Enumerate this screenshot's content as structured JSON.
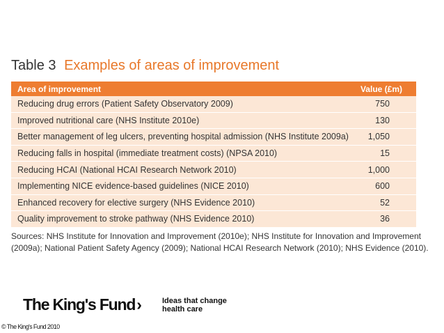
{
  "table": {
    "number": "Table 3",
    "caption": "Examples of areas of improvement",
    "headers": [
      "Area of improvement",
      "Value (£m)"
    ],
    "rows": [
      {
        "area": "Reducing drug errors (Patient Safety Observatory 2009)",
        "value": "750"
      },
      {
        "area": "Improved nutritional care (NHS Institute 2010e)",
        "value": "130"
      },
      {
        "area": "Better management of leg ulcers, preventing hospital admission (NHS Institute 2009a)",
        "value": "1,050"
      },
      {
        "area": "Reducing falls in hospital (immediate treatment costs) (NPSA 2010)",
        "value": "15"
      },
      {
        "area": "Reducing HCAI (National HCAI Research Network 2010)",
        "value": "1,000"
      },
      {
        "area": "Implementing NICE evidence-based guidelines (NICE 2010)",
        "value": "600"
      },
      {
        "area": "Enhanced recovery for elective surgery (NHS Evidence 2010)",
        "value": "52"
      },
      {
        "area": "Quality improvement to stroke pathway (NHS Evidence 2010)",
        "value": "36"
      }
    ]
  },
  "sources": "Sources: NHS Institute for Innovation and Improvement (2010e); NHS Institute for Innovation and Improvement (2009a); National Patient Safety Agency (2009); National HCAI Research Network (2010); NHS Evidence (2010).",
  "footer": {
    "logo_text": "The King's Fund",
    "logo_chevron": "›",
    "tagline_line1": "Ideas that change",
    "tagline_line2": "health care",
    "copyright": "© The King's Fund 2010"
  },
  "colors": {
    "accent": "#ee7d31",
    "row_fill": "#fce7d6"
  }
}
